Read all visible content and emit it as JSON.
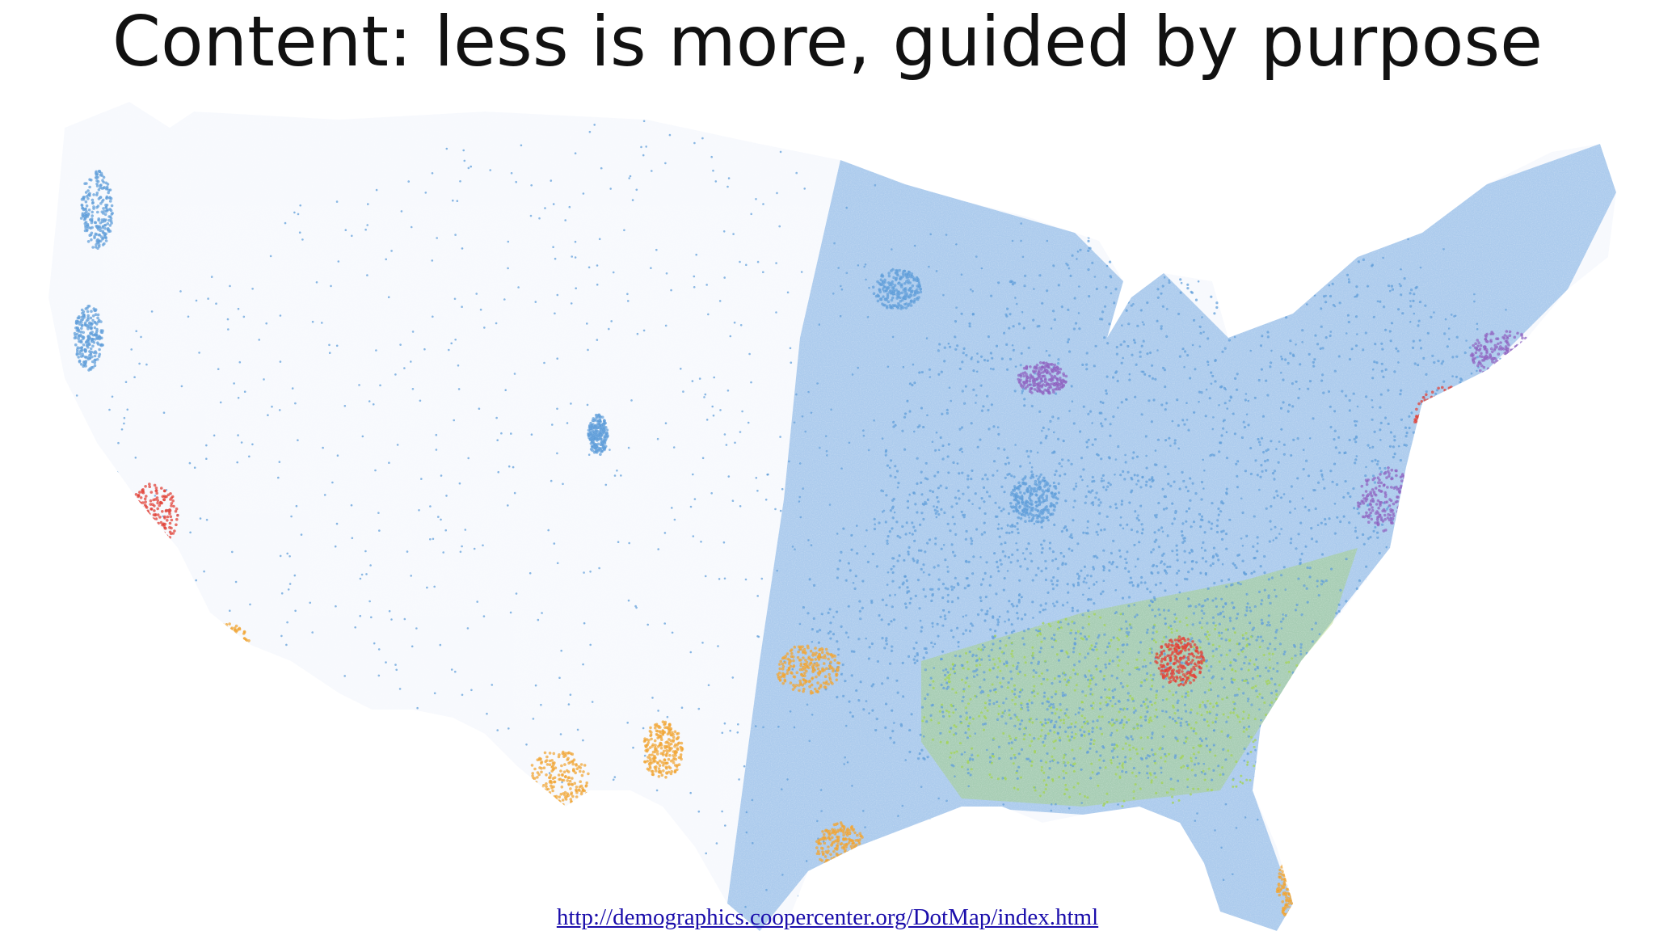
{
  "slide": {
    "title": "Content: less is more, guided by purpose",
    "source_link": "http://demographics.coopercenter.org/DotMap/index.html"
  },
  "map": {
    "subject": "United States population dot map (one dot per person, colored by race/ethnicity)",
    "palette": {
      "white": "#5b9bd8",
      "black": "#9fd14a",
      "asian": "#e03a2f",
      "hispanic": "#f0a22c",
      "other": "#8b5fbf"
    }
  }
}
